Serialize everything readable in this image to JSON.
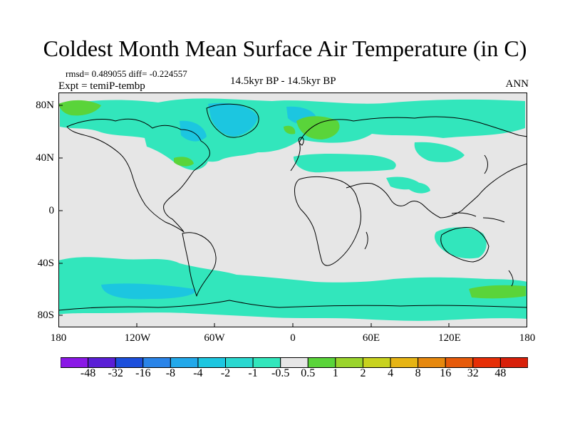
{
  "title": "Coldest Month Mean Surface Air Temperature (in C)",
  "stats": "rmsd= 0.489055 diff= -0.224557",
  "experiment": "Expt = temiP-tembp",
  "period": "14.5kyr BP - 14.5kyr BP",
  "season": "ANN",
  "axes": {
    "lat_ticks": [
      "80N",
      "40N",
      "0",
      "40S",
      "80S"
    ],
    "lon_ticks": [
      "180",
      "120W",
      "60W",
      "0",
      "60E",
      "120E",
      "180"
    ]
  },
  "legend": {
    "labels": [
      "-48",
      "-32",
      "-16",
      "-8",
      "-4",
      "-2",
      "-1",
      "-0.5",
      "0.5",
      "1",
      "2",
      "4",
      "8",
      "16",
      "32",
      "48"
    ],
    "colors": [
      "#8a18e6",
      "#5a1fd6",
      "#1c4fdc",
      "#2a84e8",
      "#22a8ea",
      "#1cc6e0",
      "#2ad8d0",
      "#32e6bc",
      "#e6e6e6",
      "#5ad43a",
      "#9ad42c",
      "#c8d21e",
      "#e6b414",
      "#e6880e",
      "#e65a0a",
      "#e62e06",
      "#d8200a"
    ]
  },
  "map": {
    "ocean_color": "#e6e6e6",
    "coast_color": "#000000"
  }
}
